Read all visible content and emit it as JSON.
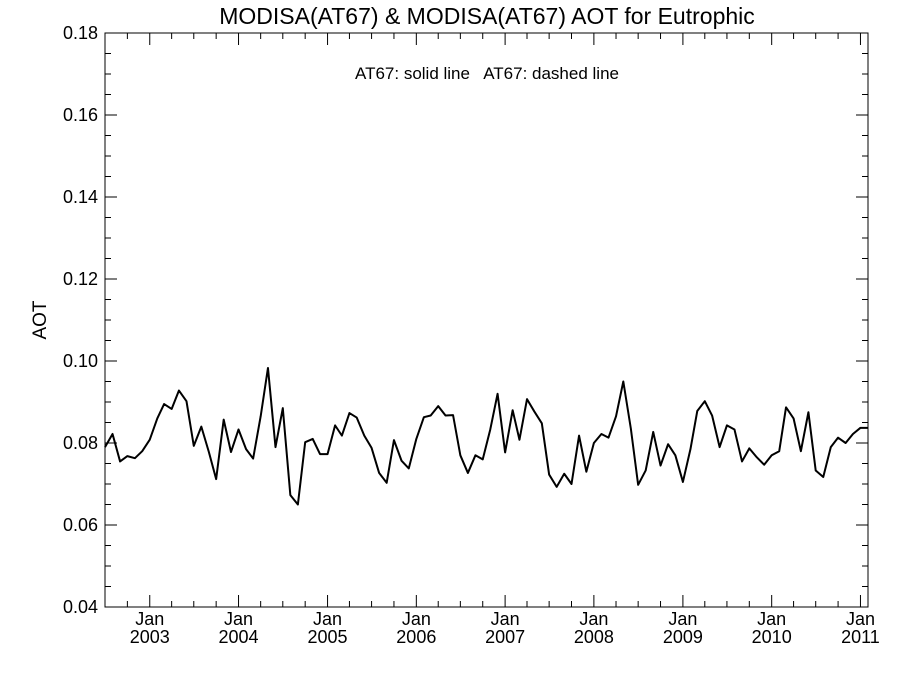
{
  "chart_data": {
    "type": "line",
    "title": "MODISA(AT67) & MODISA(AT67)  AOT for Eutrophic",
    "ylabel": "AOT",
    "xlabel": "",
    "annotation": "AT67: solid line   AT67: dashed line",
    "xlim": [
      "2002-07-01",
      "2011-02-01"
    ],
    "ylim": [
      0.04,
      0.18
    ],
    "y_ticks": [
      0.04,
      0.06,
      0.08,
      0.1,
      0.12,
      0.14,
      0.16,
      0.18
    ],
    "y_tick_labels": [
      "0.04",
      "0.06",
      "0.08",
      "0.10",
      "0.12",
      "0.14",
      "0.16",
      "0.18"
    ],
    "x_ticks": [
      {
        "date": "2003-01-01",
        "month": "Jan",
        "year": "2003"
      },
      {
        "date": "2004-01-01",
        "month": "Jan",
        "year": "2004"
      },
      {
        "date": "2005-01-01",
        "month": "Jan",
        "year": "2005"
      },
      {
        "date": "2006-01-01",
        "month": "Jan",
        "year": "2006"
      },
      {
        "date": "2007-01-01",
        "month": "Jan",
        "year": "2007"
      },
      {
        "date": "2008-01-01",
        "month": "Jan",
        "year": "2008"
      },
      {
        "date": "2009-01-01",
        "month": "Jan",
        "year": "2009"
      },
      {
        "date": "2010-01-01",
        "month": "Jan",
        "year": "2010"
      },
      {
        "date": "2011-01-01",
        "month": "Jan",
        "year": "2011"
      }
    ],
    "grid": false,
    "series": [
      {
        "style": "solid",
        "color": "#000000",
        "x": [
          "2002-07",
          "2002-08",
          "2002-09",
          "2002-10",
          "2002-11",
          "2002-12",
          "2003-01",
          "2003-02",
          "2003-03",
          "2003-04",
          "2003-05",
          "2003-06",
          "2003-07",
          "2003-08",
          "2003-09",
          "2003-10",
          "2003-11",
          "2003-12",
          "2004-01",
          "2004-02",
          "2004-03",
          "2004-04",
          "2004-05",
          "2004-06",
          "2004-07",
          "2004-08",
          "2004-09",
          "2004-10",
          "2004-11",
          "2004-12",
          "2005-01",
          "2005-02",
          "2005-03",
          "2005-04",
          "2005-05",
          "2005-06",
          "2005-07",
          "2005-08",
          "2005-09",
          "2005-10",
          "2005-11",
          "2005-12",
          "2006-01",
          "2006-02",
          "2006-03",
          "2006-04",
          "2006-05",
          "2006-06",
          "2006-07",
          "2006-08",
          "2006-09",
          "2006-10",
          "2006-11",
          "2006-12",
          "2007-01",
          "2007-02",
          "2007-03",
          "2007-04",
          "2007-05",
          "2007-06",
          "2007-07",
          "2007-08",
          "2007-09",
          "2007-10",
          "2007-11",
          "2007-12",
          "2008-01",
          "2008-02",
          "2008-03",
          "2008-04",
          "2008-05",
          "2008-06",
          "2008-07",
          "2008-08",
          "2008-09",
          "2008-10",
          "2008-11",
          "2008-12",
          "2009-01",
          "2009-02",
          "2009-03",
          "2009-04",
          "2009-05",
          "2009-06",
          "2009-07",
          "2009-08",
          "2009-09",
          "2009-10",
          "2009-11",
          "2009-12",
          "2010-01",
          "2010-02",
          "2010-03",
          "2010-04",
          "2010-05",
          "2010-06",
          "2010-07",
          "2010-08",
          "2010-09",
          "2010-10",
          "2010-11",
          "2010-12",
          "2011-01",
          "2011-02"
        ],
        "values": [
          0.079,
          0.0822,
          0.0755,
          0.0768,
          0.0763,
          0.078,
          0.0808,
          0.086,
          0.0895,
          0.0883,
          0.0928,
          0.0902,
          0.0793,
          0.084,
          0.0778,
          0.0712,
          0.0857,
          0.0778,
          0.0833,
          0.0785,
          0.0762,
          0.0865,
          0.0983,
          0.079,
          0.0885,
          0.0673,
          0.065,
          0.0802,
          0.081,
          0.0773,
          0.0773,
          0.0843,
          0.0818,
          0.0873,
          0.0862,
          0.0818,
          0.0788,
          0.0727,
          0.0703,
          0.0807,
          0.0757,
          0.0738,
          0.081,
          0.0863,
          0.0867,
          0.089,
          0.0867,
          0.0868,
          0.077,
          0.0727,
          0.077,
          0.076,
          0.0833,
          0.092,
          0.0777,
          0.088,
          0.0808,
          0.0907,
          0.0877,
          0.0848,
          0.0723,
          0.0693,
          0.0725,
          0.07,
          0.0818,
          0.073,
          0.08,
          0.0822,
          0.0813,
          0.0865,
          0.095,
          0.0835,
          0.0698,
          0.0733,
          0.0827,
          0.0745,
          0.0797,
          0.077,
          0.0705,
          0.0785,
          0.0878,
          0.0902,
          0.0867,
          0.079,
          0.0843,
          0.0833,
          0.0755,
          0.0787,
          0.0765,
          0.0747,
          0.077,
          0.078,
          0.0887,
          0.086,
          0.078,
          0.0875,
          0.0733,
          0.0717,
          0.079,
          0.0813,
          0.08,
          0.0822,
          0.0837,
          0.0837
        ]
      }
    ]
  }
}
